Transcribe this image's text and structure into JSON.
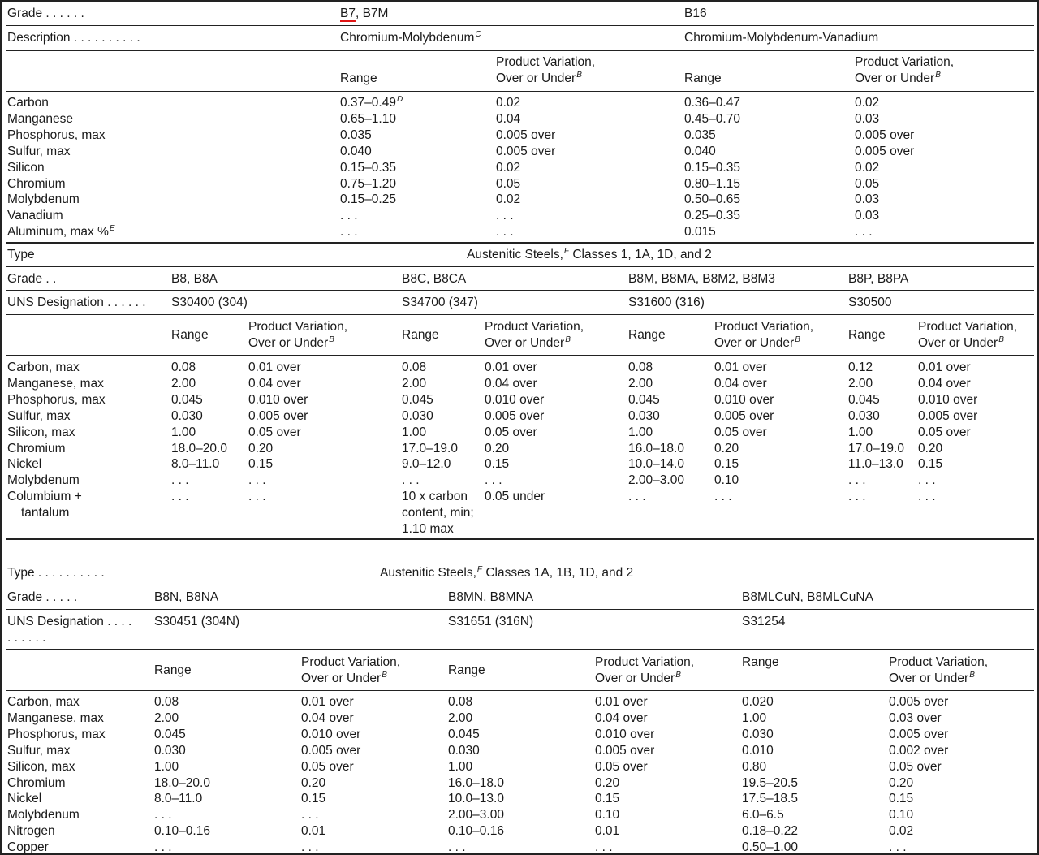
{
  "section1": {
    "grade_label": "Grade . . . . . .",
    "grade_b7_prefix": "B7",
    "grade_b7_rest": ", B7M",
    "grade_b16": "B16",
    "description_label": "Description . . . . . . . . . .",
    "desc_b7": "Chromium-Molybdenum",
    "desc_b7_note": "C",
    "desc_b16": "Chromium-Molybdenum-Vanadium",
    "headers": {
      "range": "Range",
      "pv_line1": "Product Variation,",
      "pv_line2": "Over or Under",
      "pv_note": "B"
    },
    "rows": [
      {
        "element": "Carbon",
        "b7_range": "0.37–0.49",
        "b7_range_note": "D",
        "b7_pv": "0.02",
        "b16_range": "0.36–0.47",
        "b16_pv": "0.02"
      },
      {
        "element": "Manganese",
        "b7_range": "0.65–1.10",
        "b7_pv": "0.04",
        "b16_range": "0.45–0.70",
        "b16_pv": "0.03"
      },
      {
        "element": "Phosphorus, max",
        "b7_range": "0.035",
        "b7_pv": "0.005 over",
        "b16_range": "0.035",
        "b16_pv": "0.005 over"
      },
      {
        "element": "Sulfur, max",
        "b7_range": "0.040",
        "b7_pv": "0.005 over",
        "b16_range": "0.040",
        "b16_pv": "0.005 over"
      },
      {
        "element": "Silicon",
        "b7_range": "0.15–0.35",
        "b7_pv": "0.02",
        "b16_range": "0.15–0.35",
        "b16_pv": "0.02"
      },
      {
        "element": "Chromium",
        "b7_range": "0.75–1.20",
        "b7_pv": "0.05",
        "b16_range": "0.80–1.15",
        "b16_pv": "0.05"
      },
      {
        "element": "Molybdenum",
        "b7_range": "0.15–0.25",
        "b7_pv": "0.02",
        "b16_range": "0.50–0.65",
        "b16_pv": "0.03"
      },
      {
        "element": "Vanadium",
        "b7_range": ". . .",
        "b7_pv": ". . .",
        "b16_range": "0.25–0.35",
        "b16_pv": "0.03"
      },
      {
        "element": "Aluminum, max %",
        "element_note": "E",
        "b7_range": ". . .",
        "b7_pv": ". . .",
        "b16_range": "0.015",
        "b16_pv": ". . ."
      }
    ]
  },
  "section2": {
    "type_label": "Type",
    "type_value_prefix": "Austenitic Steels,",
    "type_value_note": "F",
    "type_value_rest": " Classes 1, 1A, 1D, and 2",
    "grade_label": "Grade . .",
    "uns_label": "UNS Designation . . . . . .",
    "grades": [
      "B8, B8A",
      "B8C, B8CA",
      "B8M, B8MA, B8M2, B8M3",
      "B8P, B8PA"
    ],
    "uns": [
      "S30400 (304)",
      "S34700 (347)",
      "S31600 (316)",
      "S30500"
    ],
    "rows": [
      {
        "element": [
          "Carbon, max"
        ],
        "cells": [
          [
            "0.08"
          ],
          [
            "0.01 over"
          ],
          [
            "0.08"
          ],
          [
            "0.01 over"
          ],
          [
            "0.08"
          ],
          [
            "0.01 over"
          ],
          [
            "0.12"
          ],
          [
            "0.01 over"
          ]
        ]
      },
      {
        "element": [
          "Manganese, max"
        ],
        "cells": [
          [
            "2.00"
          ],
          [
            "0.04 over"
          ],
          [
            "2.00"
          ],
          [
            "0.04 over"
          ],
          [
            "2.00"
          ],
          [
            "0.04 over"
          ],
          [
            "2.00"
          ],
          [
            "0.04 over"
          ]
        ]
      },
      {
        "element": [
          "Phosphorus, max"
        ],
        "cells": [
          [
            "0.045"
          ],
          [
            "0.010 over"
          ],
          [
            "0.045"
          ],
          [
            "0.010 over"
          ],
          [
            "0.045"
          ],
          [
            "0.010 over"
          ],
          [
            "0.045"
          ],
          [
            "0.010 over"
          ]
        ]
      },
      {
        "element": [
          "Sulfur, max"
        ],
        "cells": [
          [
            "0.030"
          ],
          [
            "0.005 over"
          ],
          [
            "0.030"
          ],
          [
            "0.005 over"
          ],
          [
            "0.030"
          ],
          [
            "0.005 over"
          ],
          [
            "0.030"
          ],
          [
            "0.005 over"
          ]
        ]
      },
      {
        "element": [
          "Silicon, max"
        ],
        "cells": [
          [
            "1.00"
          ],
          [
            "0.05 over"
          ],
          [
            "1.00"
          ],
          [
            "0.05 over"
          ],
          [
            "1.00"
          ],
          [
            "0.05 over"
          ],
          [
            "1.00"
          ],
          [
            "0.05 over"
          ]
        ]
      },
      {
        "element": [
          "Chromium"
        ],
        "cells": [
          [
            "18.0–20.0"
          ],
          [
            "0.20"
          ],
          [
            "17.0–19.0"
          ],
          [
            "0.20"
          ],
          [
            "16.0–18.0"
          ],
          [
            "0.20"
          ],
          [
            "17.0–19.0"
          ],
          [
            "0.20"
          ]
        ]
      },
      {
        "element": [
          "Nickel"
        ],
        "cells": [
          [
            "8.0–11.0"
          ],
          [
            "0.15"
          ],
          [
            "9.0–12.0"
          ],
          [
            "0.15"
          ],
          [
            "10.0–14.0"
          ],
          [
            "0.15"
          ],
          [
            "11.0–13.0"
          ],
          [
            "0.15"
          ]
        ]
      },
      {
        "element": [
          "Molybdenum"
        ],
        "cells": [
          [
            ". . ."
          ],
          [
            ". . ."
          ],
          [
            ". . ."
          ],
          [
            ". . ."
          ],
          [
            "2.00–3.00"
          ],
          [
            "0.10"
          ],
          [
            ". . ."
          ],
          [
            ". . ."
          ]
        ]
      },
      {
        "element": [
          "Columbium +",
          "tantalum"
        ],
        "cells": [
          [
            ". . ."
          ],
          [
            ". . ."
          ],
          [
            "10 x carbon",
            "content, min;",
            "1.10 max"
          ],
          [
            "0.05 under"
          ],
          [
            ". . ."
          ],
          [
            ". . ."
          ],
          [
            ". . ."
          ],
          [
            ". . ."
          ]
        ]
      }
    ]
  },
  "section3": {
    "type_label": "Type . . . . . . . . . .",
    "type_value_prefix": "Austenitic Steels,",
    "type_value_note": "F",
    "type_value_rest": " Classes 1A, 1B, 1D, and 2",
    "grade_label": "Grade . . . . .",
    "uns_label": "UNS Designation . . . .",
    "uns_label_cont": ". . . . . .",
    "grades": [
      "B8N, B8NA",
      "B8MN, B8MNA",
      "B8MLCuN, B8MLCuNA"
    ],
    "uns": [
      "S30451 (304N)",
      "S31651 (316N)",
      "S31254"
    ],
    "rows": [
      {
        "element": "Carbon, max",
        "cells": [
          "0.08",
          "0.01 over",
          "0.08",
          "0.01 over",
          "0.020",
          "0.005 over"
        ]
      },
      {
        "element": "Manganese, max",
        "cells": [
          "2.00",
          "0.04 over",
          "2.00",
          "0.04 over",
          "1.00",
          "0.03 over"
        ]
      },
      {
        "element": "Phosphorus, max",
        "cells": [
          "0.045",
          "0.010 over",
          "0.045",
          "0.010 over",
          "0.030",
          "0.005 over"
        ]
      },
      {
        "element": "Sulfur, max",
        "cells": [
          "0.030",
          "0.005 over",
          "0.030",
          "0.005 over",
          "0.010",
          "0.002 over"
        ]
      },
      {
        "element": "Silicon, max",
        "cells": [
          "1.00",
          "0.05 over",
          "1.00",
          "0.05 over",
          "0.80",
          "0.05 over"
        ]
      },
      {
        "element": "Chromium",
        "cells": [
          "18.0–20.0",
          "0.20",
          "16.0–18.0",
          "0.20",
          "19.5–20.5",
          "0.20"
        ]
      },
      {
        "element": "Nickel",
        "cells": [
          "8.0–11.0",
          "0.15",
          "10.0–13.0",
          "0.15",
          "17.5–18.5",
          "0.15"
        ]
      },
      {
        "element": "Molybdenum",
        "cells": [
          ". . .",
          ". . .",
          "2.00–3.00",
          "0.10",
          "6.0–6.5",
          "0.10"
        ]
      },
      {
        "element": "Nitrogen",
        "cells": [
          "0.10–0.16",
          "0.01",
          "0.10–0.16",
          "0.01",
          "0.18–0.22",
          "0.02"
        ]
      },
      {
        "element": "Copper",
        "cells": [
          ". . .",
          ". . .",
          ". . .",
          ". . .",
          "0.50–1.00",
          ". . ."
        ]
      }
    ]
  }
}
